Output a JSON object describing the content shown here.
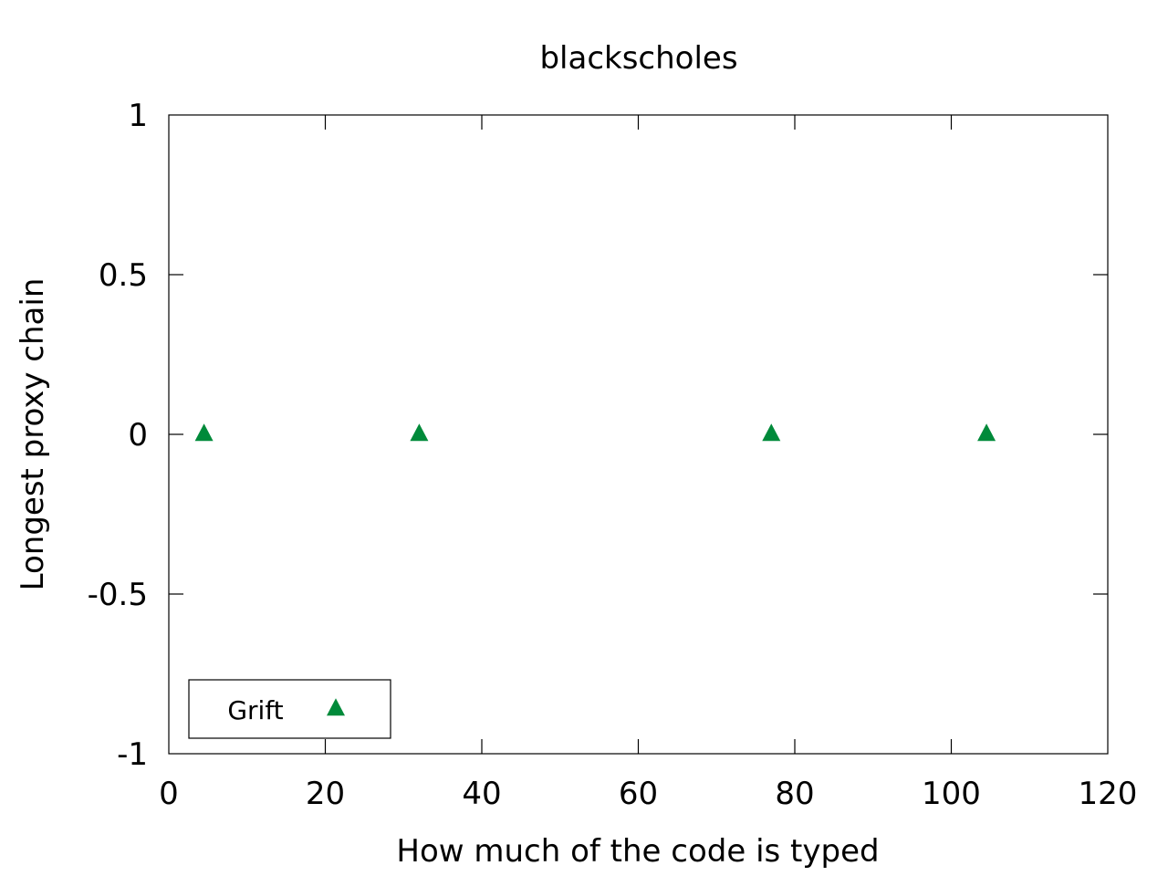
{
  "chart_data": {
    "type": "scatter",
    "title": "blackscholes",
    "xlabel": "How much of the code is typed",
    "ylabel": "Longest proxy chain",
    "xlim": [
      0,
      120
    ],
    "ylim": [
      -1,
      1
    ],
    "x_ticks": [
      0,
      20,
      40,
      60,
      80,
      100,
      120
    ],
    "y_ticks": [
      -1,
      -0.5,
      0,
      0.5,
      1
    ],
    "grid": false,
    "legend_position": "bottom-left",
    "series": [
      {
        "name": "Grift",
        "color": "#008a3a",
        "marker": "triangle",
        "points": [
          {
            "x": 4.5,
            "y": 0
          },
          {
            "x": 32,
            "y": 0
          },
          {
            "x": 77,
            "y": 0
          },
          {
            "x": 104.5,
            "y": 0
          }
        ]
      }
    ]
  }
}
